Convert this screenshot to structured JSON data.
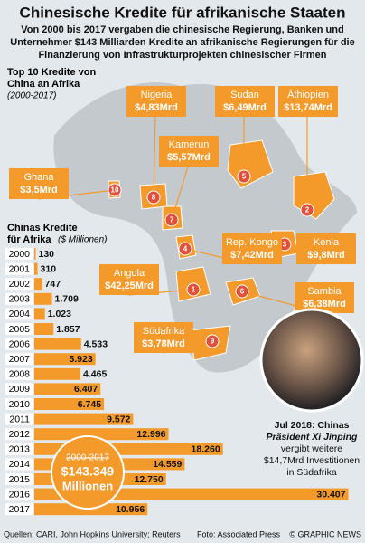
{
  "title": "Chinesische Kredite für afrikanische Staaten",
  "subtitle": [
    "Von 2000 bis 2017 vergaben die chinesische Regierung, Banken und",
    "Unternehmer $143 Milliarden Kredite an afrikanische Regierungen für die",
    "Finanzierung von Infrastrukturprojekten chinesischer Firmen"
  ],
  "top10": {
    "title": [
      "Top 10 Kredite von",
      "China an Afrika"
    ],
    "period": "(2000-2017)",
    "items": [
      {
        "rank": "1",
        "country": "Angola",
        "amount": "$42,25Mrd"
      },
      {
        "rank": "2",
        "country": "Äthiopien",
        "amount": "$13,74Mrd"
      },
      {
        "rank": "3",
        "country": "Kenia",
        "amount": "$9,8Mrd"
      },
      {
        "rank": "4",
        "country": "Rep. Kongo",
        "amount": "$7,42Mrd"
      },
      {
        "rank": "5",
        "country": "Sudan",
        "amount": "$6,49Mrd"
      },
      {
        "rank": "6",
        "country": "Sambia",
        "amount": "$6,38Mrd"
      },
      {
        "rank": "7",
        "country": "Kamerun",
        "amount": "$5,57Mrd"
      },
      {
        "rank": "8",
        "country": "Nigeria",
        "amount": "$4,83Mrd"
      },
      {
        "rank": "9",
        "country": "Südafrika",
        "amount": "$3,78Mrd"
      },
      {
        "rank": "10",
        "country": "Ghana",
        "amount": "$3,5Mrd"
      }
    ]
  },
  "chart_data": {
    "type": "bar",
    "orientation": "horizontal",
    "title": "Chinas Kredite",
    "title2": "für Afrika",
    "unit": "($ Millionen)",
    "color": "#f39a2b",
    "categories": [
      "2000",
      "2001",
      "2002",
      "2003",
      "2004",
      "2005",
      "2006",
      "2007",
      "2008",
      "2009",
      "2010",
      "2011",
      "2012",
      "2013",
      "2014",
      "2015",
      "2016",
      "2017"
    ],
    "values": [
      130,
      310,
      747,
      1709,
      1023,
      1857,
      4533,
      5923,
      4465,
      6407,
      6745,
      9572,
      12996,
      18260,
      14559,
      12750,
      30407,
      10956
    ],
    "value_labels": [
      "130",
      "310",
      "747",
      "1.709",
      "1.023",
      "1.857",
      "4.533",
      "5.923",
      "4.465",
      "6.407",
      "6.745",
      "9.572",
      "12.996",
      "18.260",
      "14.559",
      "12.750",
      "30.407",
      "10.956"
    ],
    "xlim": [
      0,
      31500
    ]
  },
  "total": {
    "period": "2000-2017",
    "amount": "$143.349",
    "unit": "Millionen"
  },
  "caption": [
    "Jul 2018: Chinas",
    "Präsident Xi Jinping",
    "vergibt weitere",
    "$14,7Mrd Investitionen",
    "in Südafrika"
  ],
  "footer": {
    "sources": "Quellen: CARI, John Hopkins University; Reuters",
    "photo": "Foto: Associated Press",
    "credit": "© GRAPHIC NEWS"
  }
}
